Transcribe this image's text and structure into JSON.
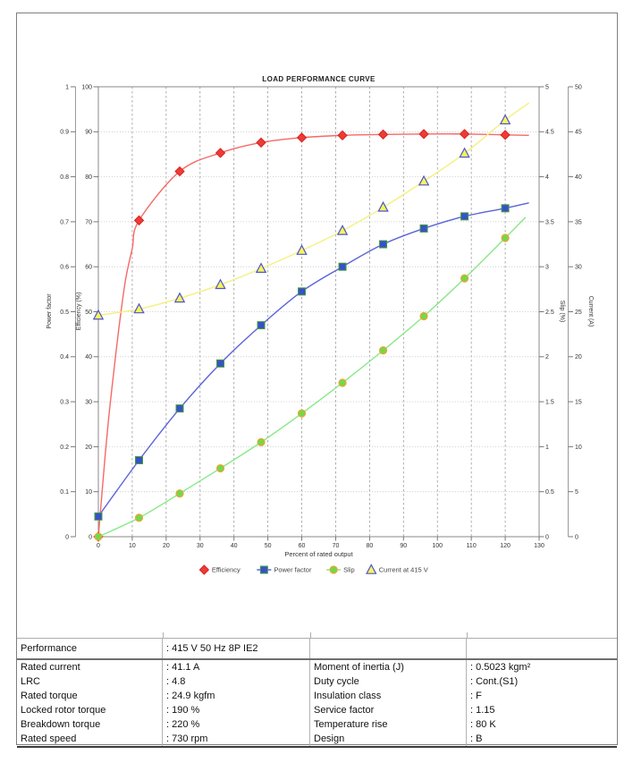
{
  "chart_data": {
    "type": "line",
    "title": "LOAD PERFORMANCE CURVE",
    "xlabel": "Percent of rated output",
    "x": [
      0,
      12,
      24,
      36,
      48,
      60,
      72,
      84,
      96,
      108,
      120
    ],
    "xlim": [
      0,
      130
    ],
    "x_tick_step": 10,
    "grid": true,
    "legend_position": "bottom",
    "axes": {
      "power_factor": {
        "label": "Power factor",
        "side": "left",
        "min": 0,
        "max": 1,
        "step": 0.1
      },
      "efficiency": {
        "label": "Efficiency (%)",
        "side": "left",
        "min": 0,
        "max": 100,
        "step": 10
      },
      "slip": {
        "label": "Slip (%)",
        "side": "right",
        "min": 0,
        "max": 5,
        "step": 0.5
      },
      "current": {
        "label": "Current (A)",
        "side": "right",
        "min": 0,
        "max": 50,
        "step": 5
      }
    },
    "series": [
      {
        "name": "Efficiency",
        "axis": "efficiency",
        "marker": "diamond",
        "line_color": "#f56a66",
        "fill": "#ee3b35",
        "stroke": "#d42420",
        "values": [
          0,
          70.3,
          81.2,
          85.3,
          87.6,
          88.7,
          89.2,
          89.4,
          89.5,
          89.5,
          89.3
        ],
        "curve_extra_x": [
          1,
          2,
          3,
          4,
          6,
          8,
          10,
          127
        ],
        "curve_extra_y": [
          9,
          18,
          26,
          33,
          46,
          57,
          64,
          89.2
        ]
      },
      {
        "name": "Power factor",
        "axis": "power_factor",
        "marker": "square",
        "line_color": "#5a63d8",
        "fill": "#3a50c8",
        "stroke": "#3f9f3f",
        "values": [
          0.045,
          0.17,
          0.285,
          0.385,
          0.47,
          0.545,
          0.6,
          0.65,
          0.685,
          0.712,
          0.73
        ],
        "curve_extra_x": [
          127
        ],
        "curve_extra_y": [
          0.742
        ]
      },
      {
        "name": "Slip",
        "axis": "slip",
        "marker": "circle",
        "line_color": "#86e986",
        "fill": "#72d948",
        "stroke": "#eca438",
        "values": [
          0,
          0.21,
          0.48,
          0.76,
          1.05,
          1.37,
          1.71,
          2.07,
          2.45,
          2.87,
          3.32
        ],
        "curve_extra_x": [
          126
        ],
        "curve_extra_y": [
          3.55
        ]
      },
      {
        "name": "Current at 415 V",
        "axis": "current",
        "marker": "triangle",
        "line_color": "#f5f07e",
        "fill": "#f8f35c",
        "stroke": "#4c55cc",
        "values": [
          24.6,
          25.3,
          26.5,
          28.0,
          29.8,
          31.8,
          34.0,
          36.6,
          39.5,
          42.6,
          46.3
        ],
        "curve_extra_x": [
          127
        ],
        "curve_extra_y": [
          48.2
        ]
      }
    ]
  },
  "table": {
    "header": {
      "label": "Performance",
      "value": ": 415 V 50 Hz 8P IE2"
    },
    "left_rows": [
      {
        "label": "Rated current",
        "value": ": 41.1 A"
      },
      {
        "label": "LRC",
        "value": ": 4.8"
      },
      {
        "label": "Rated torque",
        "value": ": 24.9 kgfm"
      },
      {
        "label": "Locked rotor torque",
        "value": ": 190 %"
      },
      {
        "label": "Breakdown torque",
        "value": ": 220 %"
      },
      {
        "label": "Rated speed",
        "value": ": 730 rpm"
      }
    ],
    "right_rows": [
      {
        "label": "Moment of inertia (J)",
        "value": ": 0.5023 kgm²"
      },
      {
        "label": "Duty cycle",
        "value": ": Cont.(S1)"
      },
      {
        "label": "Insulation class",
        "value": ": F"
      },
      {
        "label": "Service factor",
        "value": ": 1.15"
      },
      {
        "label": "Temperature rise",
        "value": ": 80 K"
      },
      {
        "label": "Design",
        "value": ": B"
      }
    ]
  }
}
